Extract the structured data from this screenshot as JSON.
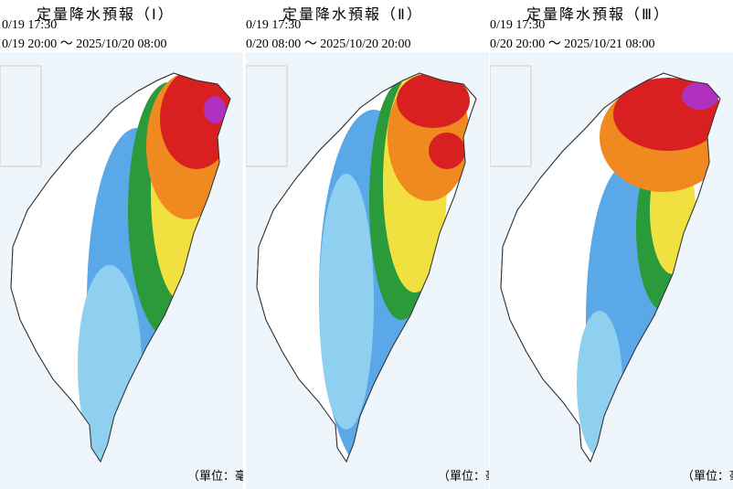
{
  "panels": [
    {
      "title": "定量降水預報（Ⅰ）",
      "issued": "0/19 17:30",
      "period": "0/19 20:00 ～ 2025/10/20 08:00",
      "unit": "（單位：毫"
    },
    {
      "title": "定量降水預報（Ⅱ）",
      "issued": "0/19 17:30",
      "period": "0/20 08:00 ～ 2025/10/20 20:00",
      "unit": "（單位：毫"
    },
    {
      "title": "定量降水預報（Ⅲ）",
      "issued": "0/19 17:30",
      "period": "0/20 20:00 ～ 2025/10/21 08:00",
      "unit": "（單位：毫"
    }
  ]
}
